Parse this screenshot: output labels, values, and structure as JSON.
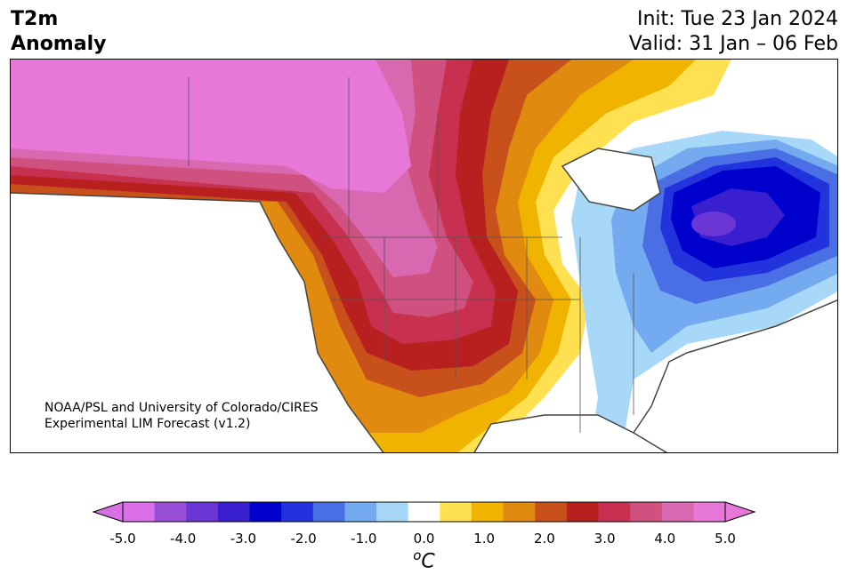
{
  "title": {
    "variable_line1": "T2m",
    "variable_line2": "Anomaly",
    "init": "Init: Tue 23 Jan 2024",
    "valid": "Valid: 31 Jan – 06 Feb"
  },
  "credit": {
    "line1": "NOAA/PSL and University of Colorado/CIRES",
    "line2": "Experimental LIM Forecast (v1.2)"
  },
  "colorbar": {
    "unit_superscript": "o",
    "unit_base": "C",
    "colors": [
      "#d96fe6",
      "#9a4fd8",
      "#6a36d6",
      "#3a1fce",
      "#0000cc",
      "#2233dd",
      "#4a6fe4",
      "#74aaf0",
      "#a8d8f8",
      "#ffffff",
      "#ffe050",
      "#f0b400",
      "#e08a10",
      "#c8501a",
      "#b82020",
      "#c83050",
      "#d05080",
      "#d868b0",
      "#e878d8"
    ],
    "tick_labels": [
      "-5.0",
      "-4.0",
      "-3.0",
      "-2.0",
      "-1.0",
      "0.0",
      "1.0",
      "2.0",
      "3.0",
      "4.0",
      "5.0"
    ]
  }
}
